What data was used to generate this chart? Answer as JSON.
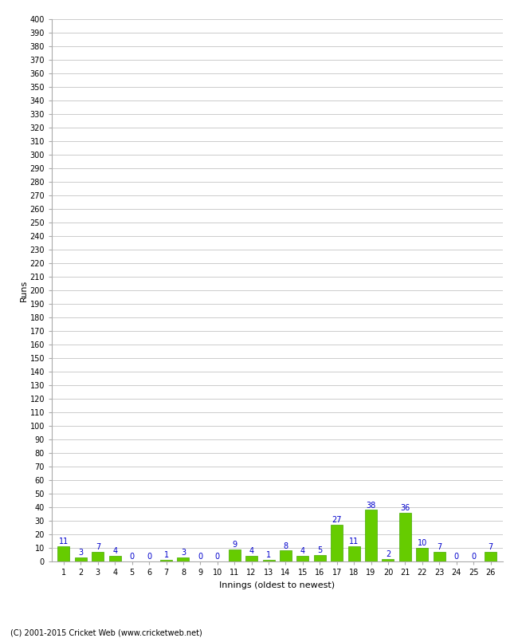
{
  "innings": [
    1,
    2,
    3,
    4,
    5,
    6,
    7,
    8,
    9,
    10,
    11,
    12,
    13,
    14,
    15,
    16,
    17,
    18,
    19,
    20,
    21,
    22,
    23,
    24,
    25,
    26
  ],
  "runs": [
    11,
    3,
    7,
    4,
    0,
    0,
    1,
    3,
    0,
    0,
    9,
    4,
    1,
    8,
    4,
    5,
    27,
    11,
    38,
    2,
    36,
    10,
    7,
    0,
    0,
    7
  ],
  "bar_color": "#66cc00",
  "bar_edge_color": "#44aa00",
  "label_color": "#0000cc",
  "xlabel": "Innings (oldest to newest)",
  "ylabel": "Runs",
  "ylim": [
    0,
    400
  ],
  "background_color": "#ffffff",
  "grid_color": "#cccccc",
  "footer": "(C) 2001-2015 Cricket Web (www.cricketweb.net)",
  "label_fontsize": 7,
  "axis_fontsize": 7,
  "ylabel_fontsize": 8
}
